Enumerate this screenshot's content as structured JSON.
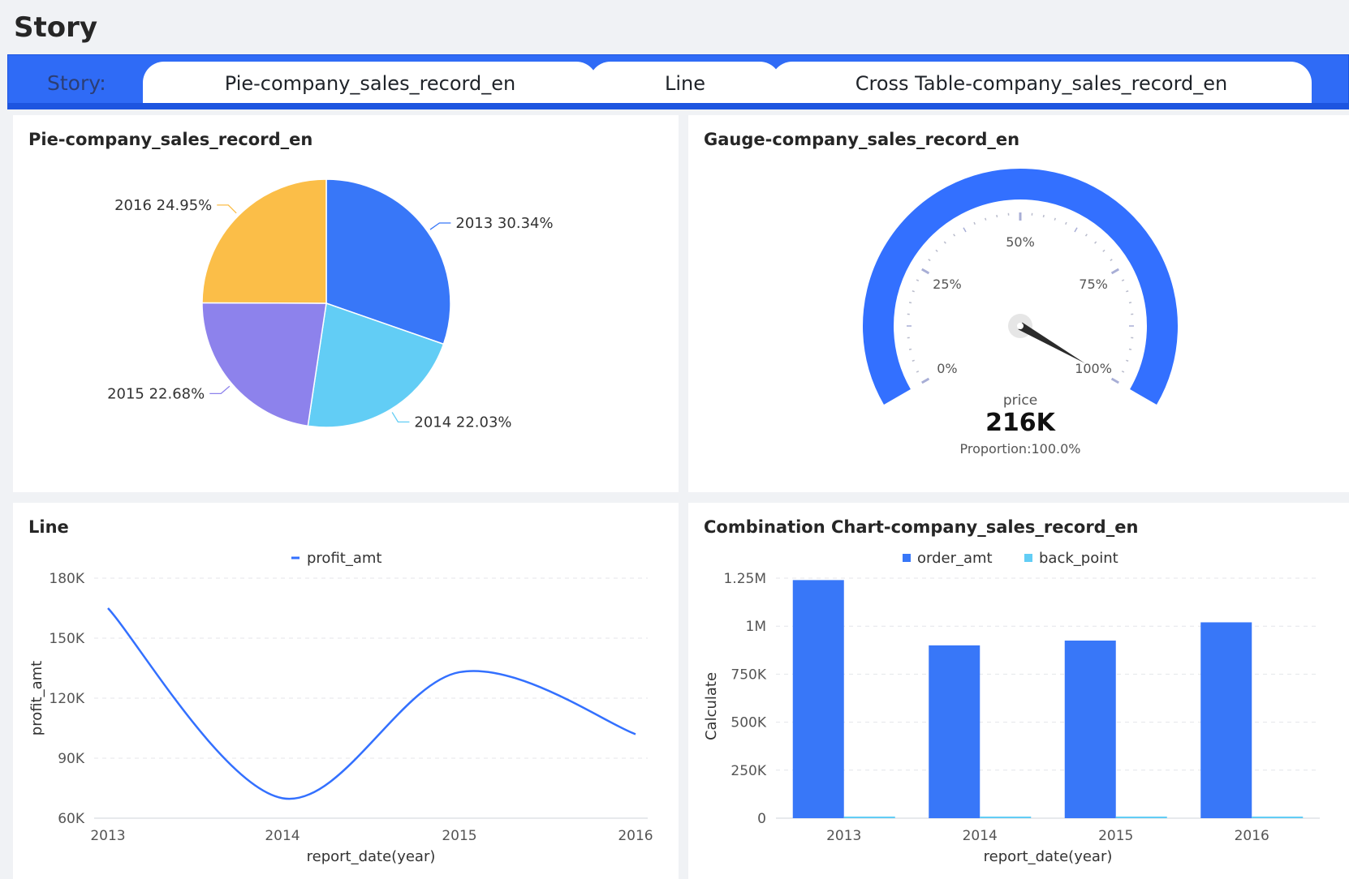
{
  "page": {
    "title": "Story"
  },
  "story_bar": {
    "label": "Story:",
    "tabs": [
      {
        "label": "Pie-company_sales_record_en"
      },
      {
        "label": "Line"
      },
      {
        "label": "Cross Table-company_sales_record_en"
      }
    ]
  },
  "colors": {
    "accent": "#3370ff",
    "pie": [
      "#3877f8",
      "#62cdf5",
      "#8d82ec",
      "#fbbe48"
    ],
    "bar_order_amt": "#3877f8",
    "bar_back_point": "#62cdf5"
  },
  "chart_data": [
    {
      "id": "pie",
      "type": "pie",
      "title": "Pie-company_sales_record_en",
      "slices": [
        {
          "label": "2013 30.34%",
          "name": "2013",
          "percent": 30.34
        },
        {
          "label": "2014 22.03%",
          "name": "2014",
          "percent": 22.03
        },
        {
          "label": "2015 22.68%",
          "name": "2015",
          "percent": 22.68
        },
        {
          "label": "2016 24.95%",
          "name": "2016",
          "percent": 24.95
        }
      ]
    },
    {
      "id": "gauge",
      "type": "gauge",
      "title": "Gauge-company_sales_record_en",
      "tick_labels": [
        "0%",
        "25%",
        "50%",
        "75%",
        "100%"
      ],
      "measure": "price",
      "value_text": "216K",
      "proportion_text": "Proportion:100.0%",
      "value_fraction": 1.0
    },
    {
      "id": "line",
      "type": "line",
      "title": "Line",
      "legend": "profit_amt",
      "xlabel": "report_date(year)",
      "ylabel": "profit_amt",
      "x": [
        "2013",
        "2014",
        "2015",
        "2016"
      ],
      "values": [
        165000,
        70000,
        133000,
        102000
      ],
      "ylim": [
        60000,
        180000
      ],
      "yticks": [
        {
          "value": 60000,
          "label": "60K"
        },
        {
          "value": 90000,
          "label": "90K"
        },
        {
          "value": 120000,
          "label": "120K"
        },
        {
          "value": 150000,
          "label": "150K"
        },
        {
          "value": 180000,
          "label": "180K"
        }
      ]
    },
    {
      "id": "combo",
      "type": "bar",
      "title": "Combination Chart-company_sales_record_en",
      "xlabel": "report_date(year)",
      "ylabel": "Calculate",
      "categories": [
        "2013",
        "2014",
        "2015",
        "2016"
      ],
      "series": [
        {
          "name": "order_amt",
          "values": [
            1240000,
            900000,
            925000,
            1020000
          ]
        },
        {
          "name": "back_point",
          "values": [
            2000,
            2000,
            2000,
            2000
          ]
        }
      ],
      "ylim": [
        0,
        1250000
      ],
      "yticks": [
        {
          "value": 0,
          "label": "0"
        },
        {
          "value": 250000,
          "label": "250K"
        },
        {
          "value": 500000,
          "label": "500K"
        },
        {
          "value": 750000,
          "label": "750K"
        },
        {
          "value": 1000000,
          "label": "1M"
        },
        {
          "value": 1250000,
          "label": "1.25M"
        }
      ]
    }
  ]
}
